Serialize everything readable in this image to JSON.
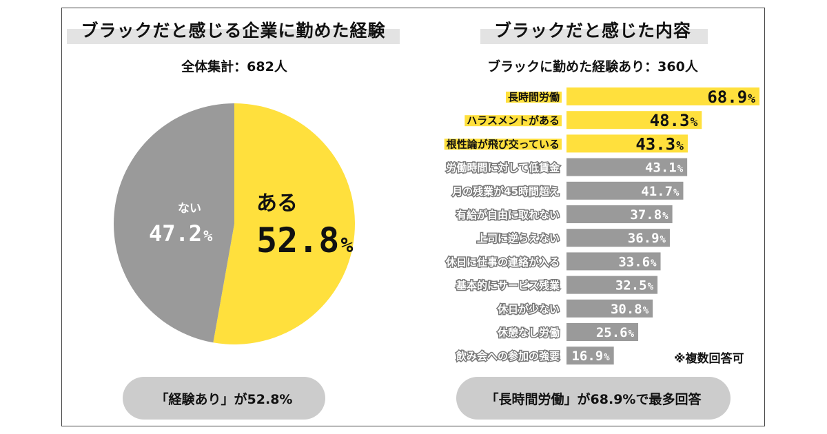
{
  "left": {
    "heading": "ブラックだと感じる企業に勤めた経験",
    "subheading": "全体集計：682人",
    "summary": "「経験あり」が52.8%"
  },
  "right": {
    "heading": "ブラックだと感じた内容",
    "subheading": "ブラックに勤めた経験あり：360人",
    "summary": "「長時間労働」が68.9%で最多回答",
    "note": "※複数回答可"
  },
  "colors": {
    "highlight": "#ffe03d",
    "grey": "#9a9a9a",
    "pill": "#cccccc"
  },
  "chart_data": [
    {
      "type": "pie",
      "slices": [
        {
          "label": "ある",
          "value": 52.8,
          "display": "52.8",
          "unit": "%",
          "color": "#ffe03d"
        },
        {
          "label": "ない",
          "value": 47.2,
          "display": "47.2",
          "unit": "%",
          "color": "#9a9a9a"
        }
      ]
    },
    {
      "type": "bar",
      "orientation": "horizontal",
      "unit": "%",
      "xlim": [
        0,
        70
      ],
      "categories": [
        "長時間労働",
        "ハラスメントがある",
        "根性論が飛び交っている",
        "労働時間に対して低賃金",
        "月の残業が45時間超え",
        "有給が自由に取れない",
        "上司に逆らえない",
        "休日に仕事の連絡が入る",
        "基本的にサービス残業",
        "休日が少ない",
        "休憩なし労働",
        "飲み会への参加の強要"
      ],
      "values": [
        68.9,
        48.3,
        43.3,
        43.1,
        41.7,
        37.8,
        36.9,
        33.6,
        32.5,
        30.8,
        25.6,
        16.9
      ],
      "labels": [
        "68.9",
        "48.3",
        "43.3",
        "43.1",
        "41.7",
        "37.8",
        "36.9",
        "33.6",
        "32.5",
        "30.8",
        "25.6",
        "16.9"
      ],
      "highlighted": [
        true,
        true,
        true,
        false,
        false,
        false,
        false,
        false,
        false,
        false,
        false,
        false
      ]
    }
  ]
}
